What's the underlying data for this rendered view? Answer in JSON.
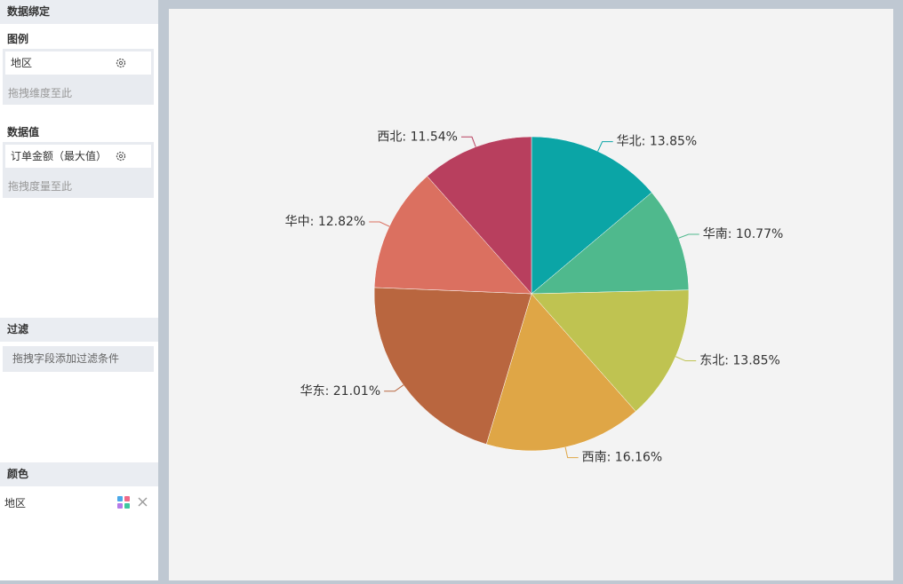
{
  "sidebar": {
    "title": "数据绑定",
    "legend": {
      "title": "图例",
      "field": "地区",
      "placeholder": "拖拽维度至此"
    },
    "values": {
      "title": "数据值",
      "field": "订单金额（最大值）",
      "placeholder": "拖拽度量至此"
    },
    "filter": {
      "title": "过滤",
      "placeholder": "拖拽字段添加过滤条件"
    },
    "color": {
      "title": "颜色",
      "field": "地区"
    }
  },
  "chart_data": {
    "type": "pie",
    "values": [
      13.85,
      10.77,
      13.85,
      16.16,
      21.01,
      12.82,
      11.54
    ],
    "value_labels": [
      "华北: 13.85%",
      "华南: 10.77%",
      "东北: 13.85%",
      "西南: 16.16%",
      "华东: 21.01%",
      "华中: 12.82%",
      "西北: 11.54%"
    ],
    "colors": [
      "#0ba5a6",
      "#4fb98d",
      "#bfc351",
      "#dfa646",
      "#b9663f",
      "#db7060",
      "#b83f5e"
    ]
  }
}
